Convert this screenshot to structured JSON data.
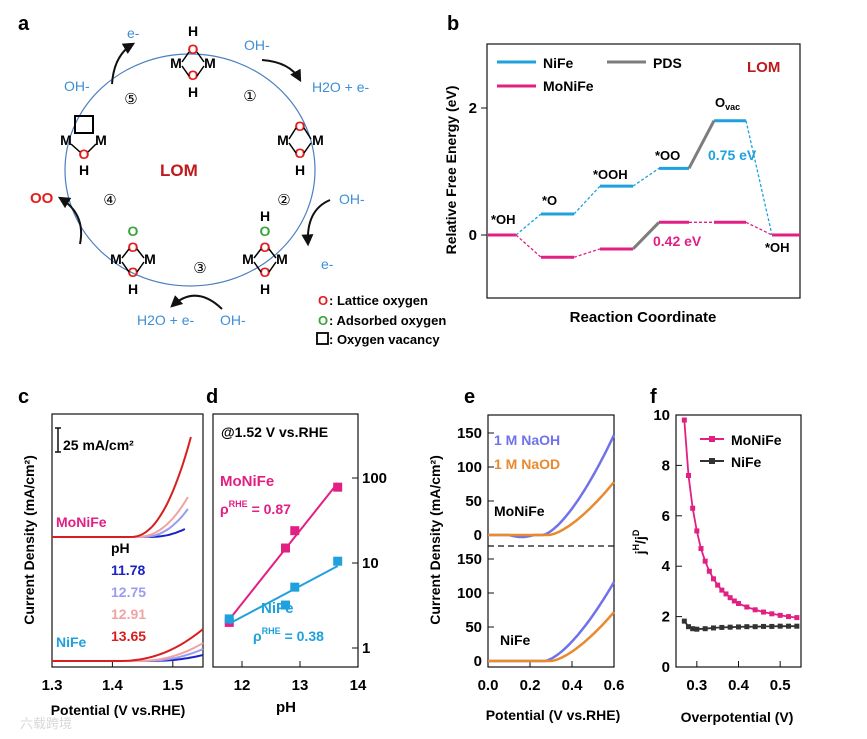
{
  "panel_labels": {
    "a": "a",
    "b": "b",
    "c": "c",
    "d": "d",
    "e": "e",
    "f": "f"
  },
  "colors": {
    "nife_blue": "#1ea1dc",
    "monife_pink": "#e21f83",
    "pds_gray": "#7d7d7d",
    "lom_red": "#c0191c",
    "lattice_o": "#e21d1d",
    "adsorbed_o": "#3aa43a",
    "oh_blue": "#3c8fd6",
    "orange": "#e88a2d",
    "purple": "#6f72e8"
  },
  "panel_a": {
    "center_title": "LOM",
    "steps": [
      "①",
      "②",
      "③",
      "④",
      "⑤"
    ],
    "species": {
      "e_top": "e-",
      "oh_top_right": "OH-",
      "h2o_e_right": "H2O + e-",
      "oh_left": "OH-",
      "oh_right": "OH-",
      "e_right": "e-",
      "h2o_e_bottom": "H2O + e-",
      "oh_bottom": "OH-",
      "oo": "OO"
    },
    "atoms": {
      "H": "H",
      "O": "O",
      "M": "M"
    },
    "legend": [
      {
        "symbol": "O",
        "label": ": Lattice oxygen"
      },
      {
        "symbol": "O",
        "label": ": Adsorbed oxygen"
      },
      {
        "symbol": "□",
        "label": ": Oxygen vacancy"
      }
    ]
  },
  "panel_b": {
    "ylabel": "Relative Free Energy (eV)",
    "xlabel": "Reaction Coordinate",
    "lom": "LOM",
    "legend": [
      "NiFe",
      "PDS",
      "MoNiFe"
    ],
    "yticks": [
      "0",
      "2"
    ],
    "states": [
      "*OH",
      "*O",
      "*OOH",
      "*OO",
      "Ovac",
      "*OH"
    ],
    "ovac_main": "O",
    "ovac_sub": "vac",
    "barrier_nife": "0.75 eV",
    "barrier_monife": "0.42 eV"
  },
  "chart_data": [
    {
      "type": "line",
      "panel": "b",
      "title": "",
      "xlabel": "Reaction Coordinate",
      "ylabel": "Relative Free Energy (eV)",
      "ylim": [
        -0.9,
        3.2
      ],
      "x": [
        "*OH",
        "*O",
        "*OOH",
        "*OO",
        "Ovac",
        "*OH"
      ],
      "series": [
        {
          "name": "NiFe",
          "values": [
            0.0,
            0.33,
            0.77,
            1.05,
            1.8,
            0.0
          ]
        },
        {
          "name": "MoNiFe",
          "values": [
            0.0,
            -0.35,
            -0.22,
            0.2,
            0.2,
            0.0
          ]
        }
      ],
      "pds": "NiFe *OO→Ovac 0.75 eV; MoNiFe *OOH→*OO 0.42 eV"
    },
    {
      "type": "line",
      "panel": "c",
      "xlabel": "Potential (V vs.RHE)",
      "ylabel": "Current Density (mA/cm²)",
      "xlim": [
        1.3,
        1.55
      ],
      "xticks": [
        "1.3",
        "1.4",
        "1.5"
      ],
      "scale_bar": "25 mA/cm²",
      "legend_title": "pH",
      "series": [
        {
          "name": "11.78"
        },
        {
          "name": "12.75"
        },
        {
          "name": "12.91"
        },
        {
          "name": "13.65"
        }
      ],
      "groups": [
        "MoNiFe",
        "NiFe"
      ]
    },
    {
      "type": "scatter",
      "panel": "d",
      "title": "@1.52 V vs.RHE",
      "xlabel": "pH",
      "ylabel": "",
      "xlim": [
        11.5,
        14
      ],
      "xticks": [
        "12",
        "13",
        "14"
      ],
      "y_scale": "log",
      "yticks": [
        "1",
        "10",
        "100"
      ],
      "series": [
        {
          "name": "MoNiFe",
          "x": [
            11.78,
            12.75,
            12.91,
            13.65
          ],
          "values": [
            2.0,
            15,
            24,
            78
          ],
          "rho": "ρRHE = 0.87"
        },
        {
          "name": "NiFe",
          "x": [
            11.78,
            12.75,
            12.91,
            13.65
          ],
          "values": [
            2.2,
            3.2,
            5.2,
            10.5
          ],
          "rho": "ρRHE = 0.38"
        }
      ]
    },
    {
      "type": "line",
      "panel": "e",
      "xlabel": "Potential (V vs.RHE)",
      "ylabel": "Current Density (mA/cm²)",
      "xlim": [
        0.0,
        0.6
      ],
      "xticks": [
        "0.0",
        "0.2",
        "0.4",
        "0.6"
      ],
      "yticks": [
        "0",
        "50",
        "100",
        "150"
      ],
      "legend": [
        "1 M NaOH",
        "1 M NaOD"
      ],
      "groups": [
        "MoNiFe",
        "NiFe"
      ]
    },
    {
      "type": "line",
      "panel": "f",
      "xlabel": "Overpotential (V)",
      "ylabel": "jH/jD",
      "xlim": [
        0.25,
        0.55
      ],
      "ylim": [
        0,
        10
      ],
      "xticks": [
        "0.3",
        "0.4",
        "0.5"
      ],
      "yticks": [
        "0",
        "2",
        "4",
        "6",
        "8",
        "10"
      ],
      "series": [
        {
          "name": "MoNiFe",
          "x": [
            0.27,
            0.28,
            0.29,
            0.3,
            0.31,
            0.32,
            0.33,
            0.34,
            0.35,
            0.36,
            0.37,
            0.38,
            0.39,
            0.4,
            0.42,
            0.44,
            0.46,
            0.48,
            0.5,
            0.52,
            0.54
          ],
          "values": [
            9.8,
            7.6,
            6.3,
            5.4,
            4.7,
            4.2,
            3.8,
            3.5,
            3.25,
            3.05,
            2.9,
            2.75,
            2.62,
            2.52,
            2.38,
            2.27,
            2.18,
            2.11,
            2.05,
            2.0,
            1.96
          ]
        },
        {
          "name": "NiFe",
          "x": [
            0.27,
            0.28,
            0.29,
            0.3,
            0.32,
            0.34,
            0.36,
            0.38,
            0.4,
            0.42,
            0.44,
            0.46,
            0.48,
            0.5,
            0.52,
            0.54
          ],
          "values": [
            1.82,
            1.6,
            1.52,
            1.5,
            1.52,
            1.55,
            1.57,
            1.58,
            1.59,
            1.6,
            1.6,
            1.61,
            1.61,
            1.62,
            1.62,
            1.62
          ]
        }
      ]
    }
  ],
  "watermark": "六载跨境"
}
